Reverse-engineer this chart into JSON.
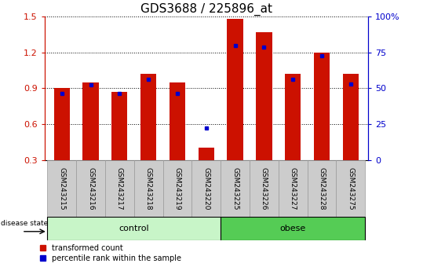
{
  "title": "GDS3688 / 225896_at",
  "samples": [
    "GSM243215",
    "GSM243216",
    "GSM243217",
    "GSM243218",
    "GSM243219",
    "GSM243220",
    "GSM243225",
    "GSM243226",
    "GSM243227",
    "GSM243228",
    "GSM243275"
  ],
  "red_values": [
    0.9,
    0.95,
    0.87,
    1.02,
    0.95,
    0.4,
    1.48,
    1.37,
    1.02,
    1.2,
    1.02
  ],
  "blue_values": [
    0.855,
    0.93,
    0.855,
    0.975,
    0.855,
    0.565,
    1.255,
    1.245,
    0.975,
    1.175,
    0.935
  ],
  "groups": [
    {
      "label": "control",
      "start": 0,
      "end": 5,
      "color": "#c8f5c8"
    },
    {
      "label": "obese",
      "start": 6,
      "end": 10,
      "color": "#55cc55"
    }
  ],
  "ylim_left": [
    0.3,
    1.5
  ],
  "ylim_right": [
    0,
    100
  ],
  "yticks_left": [
    0.3,
    0.6,
    0.9,
    1.2,
    1.5
  ],
  "yticks_right": [
    0,
    25,
    50,
    75,
    100
  ],
  "ytick_labels_right": [
    "0",
    "25",
    "50",
    "75",
    "100%"
  ],
  "bar_color": "#cc1100",
  "dot_color": "#0000cc",
  "bar_width": 0.55,
  "title_fontsize": 11,
  "tick_fontsize": 8,
  "group_label_fontsize": 8,
  "legend_label_red": "transformed count",
  "legend_label_blue": "percentile rank within the sample",
  "disease_state_label": "disease state",
  "gray_cell_color": "#cccccc",
  "gray_cell_edge": "#999999"
}
